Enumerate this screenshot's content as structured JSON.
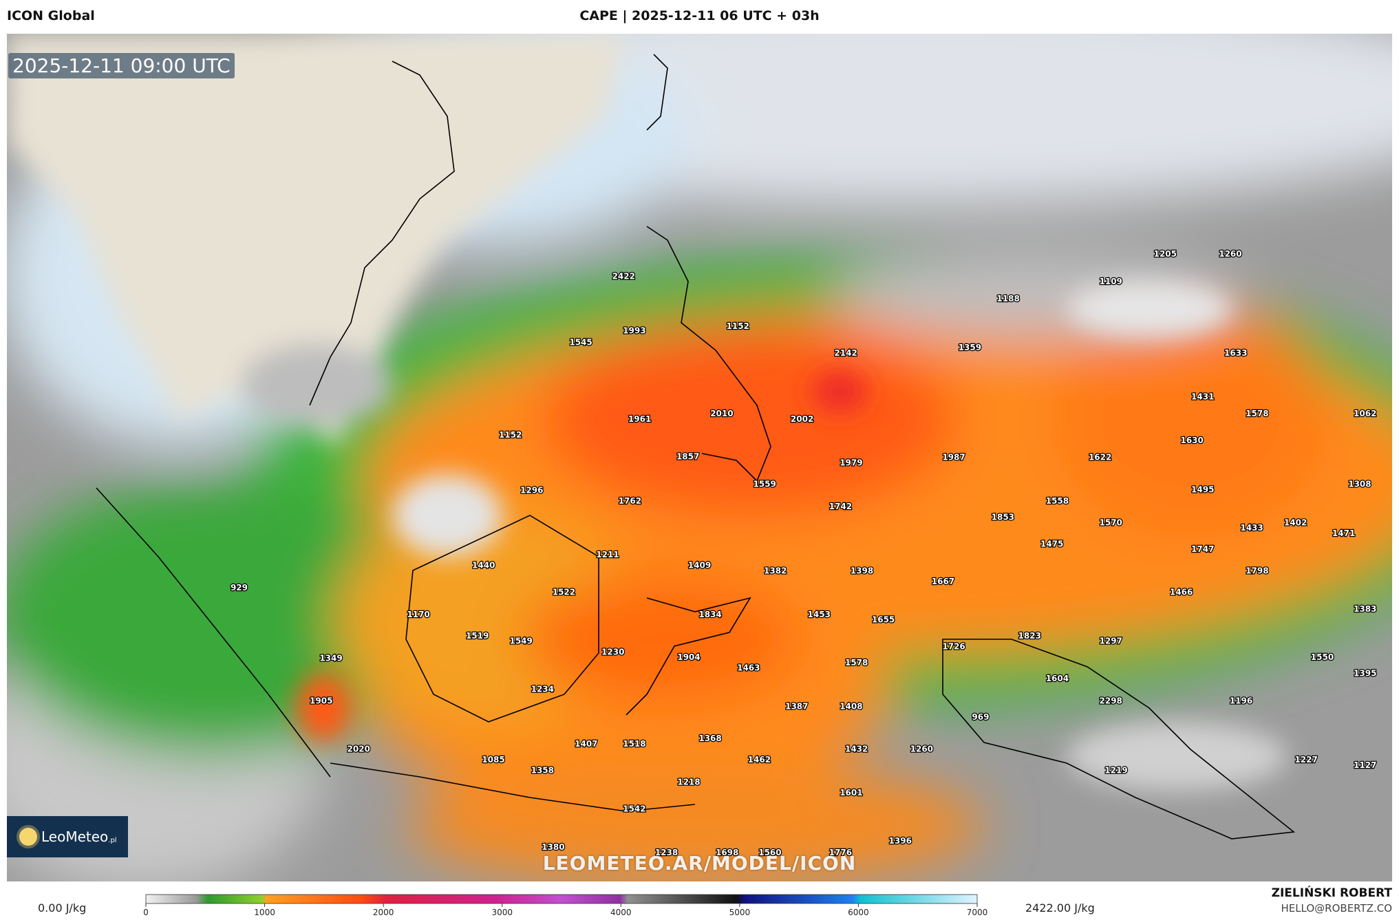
{
  "header": {
    "model": "ICON Global",
    "title": "CAPE | 2025-12-11 06 UTC + 03h"
  },
  "timestamp": "2025-12-11 09:00 UTC",
  "logo": {
    "name": "LeoMeteo",
    "suffix": ".pl"
  },
  "watermark": "LEOMETEO.AR/MODEL/ICON",
  "points": [
    2422,
    1993,
    1545,
    1152,
    2142,
    1359,
    1188,
    1109,
    1205,
    1260,
    1633,
    1431,
    1578,
    1062,
    1961,
    2010,
    2002,
    1152,
    1857,
    1979,
    1987,
    1622,
    1630,
    1308,
    1296,
    1762,
    1559,
    1742,
    1853,
    1558,
    1570,
    1495,
    1433,
    1402,
    1471,
    1211,
    1440,
    1409,
    1382,
    1398,
    1475,
    1747,
    1798,
    929,
    1522,
    1667,
    1466,
    1170,
    1834,
    1453,
    1655,
    1383,
    1519,
    1549,
    1823,
    1726,
    1297,
    1230,
    1904,
    1463,
    1578,
    1349,
    1550,
    1395,
    1604,
    1234,
    1905,
    1387,
    1408,
    2298,
    1196,
    969,
    2020,
    1407,
    1518,
    1368,
    1432,
    1260,
    1085,
    1358,
    1462,
    1227,
    1127,
    1219,
    1218,
    1601,
    1542,
    1380,
    1238,
    1698,
    1560,
    1776,
    1396
  ],
  "legend": {
    "min_label": "0.00 J/kg",
    "max_label": "2422.00 J/kg",
    "ticks": [
      0,
      1000,
      2000,
      3000,
      4000,
      5000,
      6000,
      7000
    ]
  },
  "author": {
    "name": "ZIELIŃSKI ROBERT",
    "email": "HELLO@ROBERTZ.CO"
  }
}
